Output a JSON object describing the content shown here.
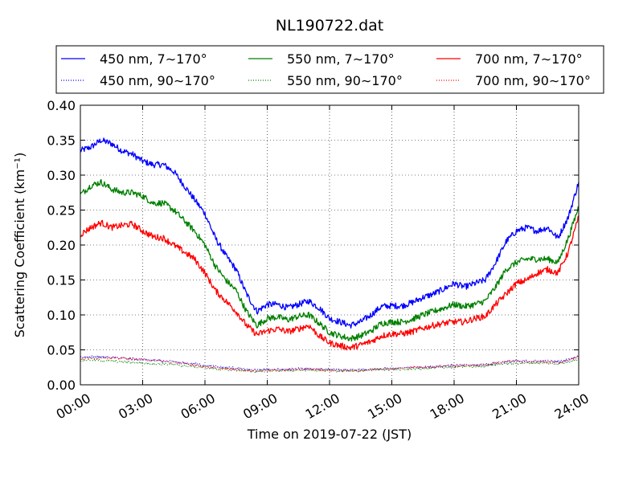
{
  "chart_data": {
    "type": "line",
    "title": "NL190722.dat",
    "xlabel": "Time on 2019-07-22 (JST)",
    "ylabel": "Scattering Coefficient (km⁻¹)",
    "xlim": [
      0,
      24
    ],
    "ylim": [
      0,
      0.4
    ],
    "x_tick_labels": [
      "00:00",
      "03:00",
      "06:00",
      "09:00",
      "12:00",
      "15:00",
      "18:00",
      "21:00",
      "24:00"
    ],
    "y_tick_labels": [
      "0.00",
      "0.05",
      "0.10",
      "0.15",
      "0.20",
      "0.25",
      "0.30",
      "0.35",
      "0.40"
    ],
    "grid": true,
    "legend_position": "top",
    "x": [
      0,
      0.5,
      1,
      1.5,
      2,
      2.5,
      3,
      3.5,
      4,
      4.5,
      5,
      5.5,
      6,
      6.5,
      7,
      7.5,
      8,
      8.5,
      9,
      9.5,
      10,
      10.5,
      11,
      11.5,
      12,
      12.5,
      13,
      13.5,
      14,
      14.5,
      15,
      15.5,
      16,
      16.5,
      17,
      17.5,
      18,
      18.5,
      19,
      19.5,
      20,
      20.5,
      21,
      21.5,
      22,
      22.5,
      23,
      23.5,
      24
    ],
    "series": [
      {
        "name": "450 nm, 7∼170°",
        "color": "#0000ff",
        "style": "solid",
        "values": [
          0.335,
          0.34,
          0.35,
          0.345,
          0.335,
          0.33,
          0.32,
          0.315,
          0.315,
          0.305,
          0.285,
          0.265,
          0.245,
          0.21,
          0.185,
          0.165,
          0.13,
          0.105,
          0.115,
          0.115,
          0.11,
          0.115,
          0.12,
          0.11,
          0.095,
          0.09,
          0.085,
          0.09,
          0.1,
          0.112,
          0.113,
          0.113,
          0.118,
          0.125,
          0.13,
          0.137,
          0.145,
          0.14,
          0.145,
          0.15,
          0.175,
          0.205,
          0.22,
          0.225,
          0.22,
          0.225,
          0.21,
          0.24,
          0.29
        ]
      },
      {
        "name": "550 nm, 7∼170°",
        "color": "#008000",
        "style": "solid",
        "values": [
          0.272,
          0.285,
          0.29,
          0.28,
          0.275,
          0.275,
          0.27,
          0.26,
          0.26,
          0.25,
          0.235,
          0.22,
          0.2,
          0.17,
          0.15,
          0.135,
          0.105,
          0.085,
          0.095,
          0.097,
          0.093,
          0.098,
          0.1,
          0.088,
          0.075,
          0.07,
          0.066,
          0.07,
          0.077,
          0.088,
          0.09,
          0.09,
          0.094,
          0.1,
          0.105,
          0.11,
          0.115,
          0.112,
          0.115,
          0.12,
          0.14,
          0.165,
          0.175,
          0.18,
          0.18,
          0.18,
          0.175,
          0.21,
          0.255
        ]
      },
      {
        "name": "700 nm, 7∼170°",
        "color": "#ff0000",
        "style": "solid",
        "values": [
          0.215,
          0.225,
          0.232,
          0.225,
          0.228,
          0.23,
          0.22,
          0.212,
          0.21,
          0.2,
          0.19,
          0.18,
          0.16,
          0.135,
          0.12,
          0.105,
          0.085,
          0.072,
          0.077,
          0.08,
          0.076,
          0.08,
          0.085,
          0.07,
          0.06,
          0.056,
          0.053,
          0.057,
          0.062,
          0.07,
          0.073,
          0.073,
          0.076,
          0.081,
          0.085,
          0.088,
          0.09,
          0.09,
          0.095,
          0.098,
          0.115,
          0.13,
          0.145,
          0.15,
          0.16,
          0.165,
          0.16,
          0.19,
          0.24
        ]
      },
      {
        "name": "450 nm, 90∼170°",
        "color": "#0000ff",
        "style": "dotted",
        "values": [
          0.039,
          0.04,
          0.04,
          0.039,
          0.038,
          0.037,
          0.036,
          0.035,
          0.034,
          0.033,
          0.031,
          0.03,
          0.028,
          0.026,
          0.025,
          0.024,
          0.022,
          0.021,
          0.022,
          0.022,
          0.022,
          0.023,
          0.023,
          0.023,
          0.022,
          0.021,
          0.021,
          0.021,
          0.022,
          0.023,
          0.023,
          0.024,
          0.025,
          0.025,
          0.026,
          0.027,
          0.028,
          0.028,
          0.028,
          0.029,
          0.031,
          0.033,
          0.034,
          0.034,
          0.034,
          0.034,
          0.033,
          0.036,
          0.041
        ]
      },
      {
        "name": "550 nm, 90∼170°",
        "color": "#008000",
        "style": "dotted",
        "values": [
          0.035,
          0.036,
          0.035,
          0.034,
          0.033,
          0.032,
          0.031,
          0.03,
          0.03,
          0.029,
          0.027,
          0.026,
          0.025,
          0.023,
          0.022,
          0.021,
          0.02,
          0.019,
          0.02,
          0.02,
          0.02,
          0.021,
          0.021,
          0.021,
          0.02,
          0.02,
          0.02,
          0.02,
          0.021,
          0.022,
          0.022,
          0.022,
          0.023,
          0.023,
          0.024,
          0.025,
          0.025,
          0.026,
          0.026,
          0.027,
          0.029,
          0.03,
          0.031,
          0.031,
          0.031,
          0.031,
          0.03,
          0.033,
          0.037
        ]
      },
      {
        "name": "700 nm, 90∼170°",
        "color": "#ff0000",
        "style": "dotted",
        "values": [
          0.037,
          0.038,
          0.039,
          0.038,
          0.038,
          0.037,
          0.036,
          0.035,
          0.034,
          0.032,
          0.03,
          0.028,
          0.026,
          0.024,
          0.023,
          0.022,
          0.021,
          0.02,
          0.021,
          0.021,
          0.021,
          0.022,
          0.022,
          0.022,
          0.021,
          0.021,
          0.02,
          0.021,
          0.022,
          0.023,
          0.023,
          0.024,
          0.025,
          0.025,
          0.026,
          0.027,
          0.027,
          0.028,
          0.028,
          0.029,
          0.031,
          0.033,
          0.034,
          0.033,
          0.033,
          0.033,
          0.032,
          0.035,
          0.04
        ]
      }
    ]
  }
}
